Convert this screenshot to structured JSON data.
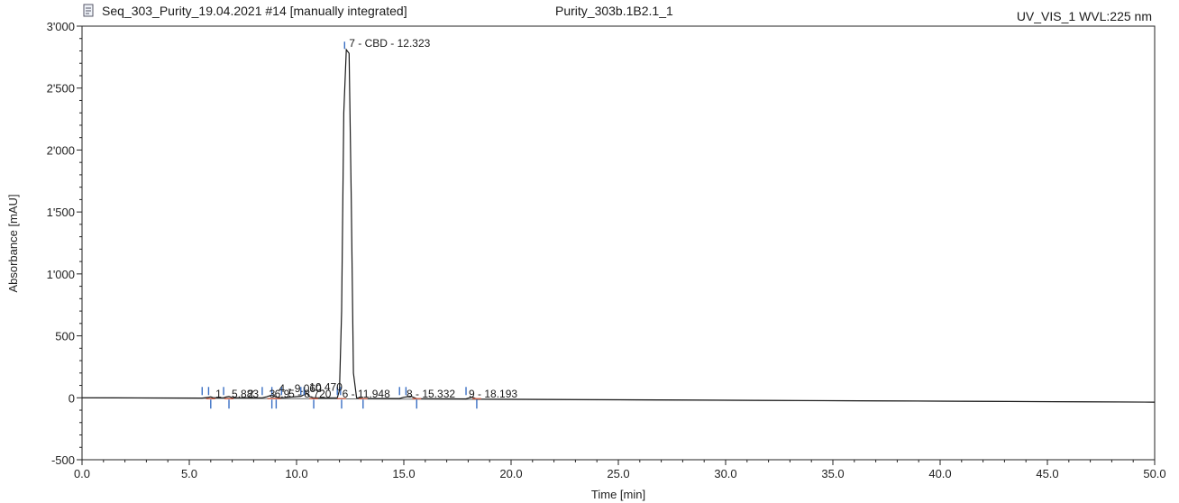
{
  "header": {
    "sequence_label": "Seq_303_Purity_19.04.2021 #14 [manually integrated]",
    "injection_label": "Purity_303b.1B2.1_1",
    "detector_label": "UV_VIS_1 WVL:225 nm",
    "doc_icon": "document-icon"
  },
  "chart_data": {
    "type": "line",
    "xlabel": "Time [min]",
    "ylabel": "Absorbance [mAU]",
    "xlim": [
      0,
      50
    ],
    "ylim": [
      -500,
      3000
    ],
    "x_ticks": [
      0,
      5,
      10,
      15,
      20,
      25,
      30,
      35,
      40,
      45,
      50
    ],
    "x_tick_labels": [
      "0.0",
      "5.0",
      "10.0",
      "15.0",
      "20.0",
      "25.0",
      "30.0",
      "35.0",
      "40.0",
      "45.0",
      "50.0"
    ],
    "y_ticks": [
      -500,
      0,
      500,
      1000,
      1500,
      2000,
      2500,
      3000
    ],
    "y_tick_labels": [
      "-500",
      "0",
      "500",
      "1'000",
      "1'500",
      "2'000",
      "2'500",
      "3'000"
    ],
    "grid": false,
    "trace_color": "#1a1a1a",
    "start_marker_color": "#3a6fc4",
    "end_marker_color": "#c8604a",
    "baseline": {
      "x": [
        0,
        50
      ],
      "y": [
        0,
        -35
      ]
    },
    "series": [
      {
        "x": [
          0,
          5.6,
          5.9,
          6.0,
          6.1,
          6.6,
          6.7,
          6.85,
          7.0,
          8.4,
          8.6,
          8.85,
          9.05,
          9.3,
          10.2,
          10.35,
          10.47,
          10.6,
          10.8,
          11.9,
          12.0,
          12.1,
          12.2,
          12.32,
          12.45,
          12.55,
          12.65,
          12.8,
          13.1,
          14.8,
          15.0,
          15.33,
          15.6,
          17.9,
          18.0,
          18.19,
          18.4,
          50
        ],
        "y": [
          0,
          -2,
          4,
          8,
          1,
          0,
          6,
          10,
          1,
          0,
          8,
          22,
          5,
          0,
          12,
          25,
          38,
          10,
          0,
          0,
          60,
          700,
          2300,
          2810,
          2780,
          1600,
          200,
          0,
          -5,
          -6,
          4,
          12,
          -7,
          -9,
          -3,
          6,
          -10,
          -35
        ]
      }
    ],
    "peak_labels": [
      {
        "x": 6.1,
        "y": 30,
        "text": "1"
      },
      {
        "x": 6.85,
        "y": 30,
        "text": "5.883"
      },
      {
        "x": 7.6,
        "y": 30,
        "text": "2"
      },
      {
        "x": 8.6,
        "y": 30,
        "text": "3"
      },
      {
        "x": 8.85,
        "y": 30,
        "text": "6.9"
      },
      {
        "x": 9.05,
        "y": 75,
        "text": "4 - 9.060"
      },
      {
        "x": 9.5,
        "y": 30,
        "text": "5 - 8.720"
      },
      {
        "x": 10.47,
        "y": 85,
        "text": "10.470"
      },
      {
        "x": 12.0,
        "y": 30,
        "text": "6 - 11.948"
      },
      {
        "x": 12.323,
        "y": 2860,
        "text": "7 - CBD - 12.323"
      },
      {
        "x": 15.0,
        "y": 30,
        "text": "8 - 15.332"
      },
      {
        "x": 17.9,
        "y": 30,
        "text": "9 - 18.193"
      }
    ],
    "start_markers": [
      5.6,
      5.9,
      6.6,
      8.4,
      8.85,
      9.3,
      10.2,
      10.35,
      11.9,
      12.05,
      14.8,
      15.1,
      17.9
    ],
    "end_markers": [
      6.0,
      6.85,
      8.85,
      9.05,
      10.8,
      12.1,
      13.1,
      15.6,
      18.4
    ]
  }
}
